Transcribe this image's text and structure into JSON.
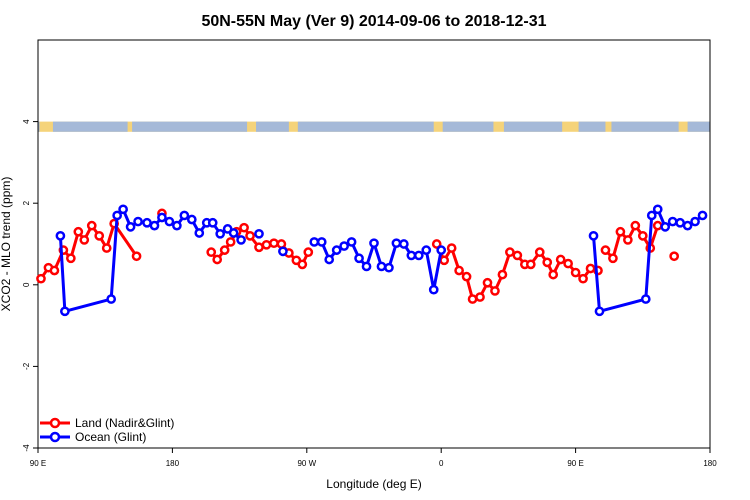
{
  "chart_data": {
    "type": "line",
    "title": "50N-55N May (Ver 9)   2014-09-06 to 2018-12-31",
    "xlabel": "Longitude (deg E)",
    "ylabel": "XCO2 - MLO trend (ppm)",
    "xlim": [
      90,
      540
    ],
    "ylim": [
      -4,
      6
    ],
    "x_ticks": [
      {
        "value": 90,
        "label": "90 E"
      },
      {
        "value": 180,
        "label": "180"
      },
      {
        "value": 270,
        "label": "90 W"
      },
      {
        "value": 360,
        "label": "0"
      },
      {
        "value": 450,
        "label": "90 E"
      },
      {
        "value": 540,
        "label": "180"
      }
    ],
    "y_ticks": [
      {
        "value": -4,
        "label": "-4"
      },
      {
        "value": -2,
        "label": "-2"
      },
      {
        "value": 0,
        "label": "0"
      },
      {
        "value": 2,
        "label": "2"
      },
      {
        "value": 4,
        "label": "4"
      }
    ],
    "grid": false,
    "legend_position": "bottom-left",
    "land_ocean_band": {
      "y_range": [
        3.75,
        4.0
      ],
      "land_color": "#f5d37a",
      "ocean_color": "#a5b9d8"
    },
    "series": [
      {
        "name": "Land (Nadir&Glint)",
        "color": "#ff0000",
        "points": [
          [
            92,
            0.15
          ],
          [
            97,
            0.42
          ],
          [
            101,
            0.35
          ],
          [
            107,
            0.85
          ],
          [
            112,
            0.65
          ],
          [
            117,
            1.3
          ],
          [
            121,
            1.1
          ],
          [
            126,
            1.45
          ],
          [
            131,
            1.2
          ],
          [
            136,
            0.9
          ],
          [
            141,
            1.5
          ],
          [
            156,
            0.7
          ],
          null,
          [
            173,
            1.75
          ],
          null,
          [
            206,
            0.8
          ],
          [
            210,
            0.62
          ],
          [
            215,
            0.85
          ],
          [
            219,
            1.05
          ],
          [
            223,
            1.3
          ],
          [
            228,
            1.4
          ],
          [
            232,
            1.2
          ],
          [
            238,
            0.92
          ],
          [
            243,
            0.98
          ],
          [
            248,
            1.02
          ],
          [
            253,
            1.0
          ],
          [
            258,
            0.78
          ],
          [
            263,
            0.6
          ],
          [
            267,
            0.5
          ],
          [
            271,
            0.8
          ],
          null,
          [
            357,
            1.0
          ],
          [
            362,
            0.6
          ],
          [
            367,
            0.9
          ],
          [
            372,
            0.35
          ],
          [
            377,
            0.2
          ],
          [
            381,
            -0.35
          ],
          [
            386,
            -0.3
          ],
          [
            391,
            0.05
          ],
          [
            396,
            -0.15
          ],
          [
            401,
            0.25
          ],
          [
            406,
            0.8
          ],
          [
            411,
            0.72
          ],
          [
            416,
            0.5
          ],
          [
            420,
            0.5
          ],
          [
            426,
            0.8
          ],
          [
            431,
            0.55
          ],
          [
            435,
            0.25
          ],
          [
            440,
            0.62
          ],
          [
            445,
            0.52
          ],
          [
            450,
            0.3
          ],
          [
            455,
            0.15
          ],
          [
            460,
            0.4
          ],
          [
            465,
            0.35
          ],
          null,
          [
            470,
            0.85
          ],
          [
            475,
            0.65
          ],
          [
            480,
            1.3
          ],
          [
            485,
            1.1
          ],
          [
            490,
            1.45
          ],
          [
            495,
            1.2
          ],
          [
            500,
            0.9
          ],
          [
            505,
            1.45
          ],
          null,
          [
            516,
            0.7
          ]
        ]
      },
      {
        "name": "Ocean (Glint)",
        "color": "#0000ff",
        "points": [
          [
            105,
            1.2
          ],
          [
            108,
            -0.65
          ],
          [
            139,
            -0.35
          ],
          [
            143,
            1.7
          ],
          [
            147,
            1.85
          ],
          [
            152,
            1.42
          ],
          [
            157,
            1.55
          ],
          [
            163,
            1.52
          ],
          [
            168,
            1.45
          ],
          [
            173,
            1.65
          ],
          [
            178,
            1.55
          ],
          [
            183,
            1.45
          ],
          [
            188,
            1.7
          ],
          [
            193,
            1.6
          ],
          [
            198,
            1.27
          ],
          [
            203,
            1.52
          ],
          [
            207,
            1.52
          ],
          [
            212,
            1.25
          ],
          [
            217,
            1.37
          ],
          [
            221,
            1.27
          ],
          [
            226,
            1.1
          ],
          null,
          [
            238,
            1.25
          ],
          null,
          [
            254,
            0.82
          ],
          null,
          [
            275,
            1.05
          ],
          [
            280,
            1.05
          ],
          [
            285,
            0.62
          ],
          [
            290,
            0.85
          ],
          [
            295,
            0.95
          ],
          [
            300,
            1.05
          ],
          [
            305,
            0.65
          ],
          [
            310,
            0.45
          ],
          [
            315,
            1.02
          ],
          [
            320,
            0.45
          ],
          [
            325,
            0.42
          ],
          [
            330,
            1.02
          ],
          [
            335,
            1.0
          ],
          [
            340,
            0.72
          ],
          [
            345,
            0.72
          ],
          [
            350,
            0.85
          ],
          [
            355,
            -0.12
          ],
          [
            360,
            0.85
          ],
          null,
          [
            462,
            1.2
          ],
          [
            466,
            -0.65
          ],
          [
            497,
            -0.35
          ],
          [
            501,
            1.7
          ],
          [
            505,
            1.85
          ],
          [
            510,
            1.42
          ],
          [
            515,
            1.55
          ],
          [
            520,
            1.52
          ],
          [
            525,
            1.45
          ],
          [
            530,
            1.55
          ],
          [
            535,
            1.7
          ]
        ]
      }
    ]
  }
}
